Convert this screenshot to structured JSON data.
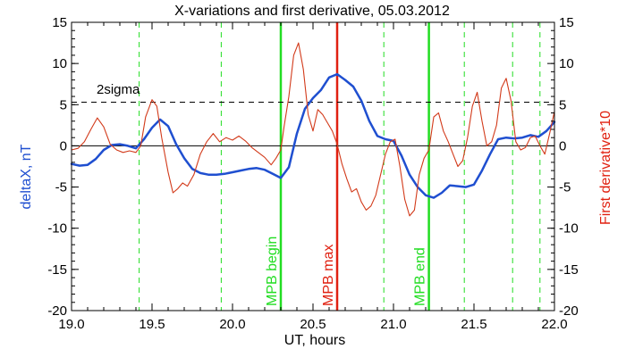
{
  "chart_data": {
    "type": "line",
    "title": "X-variations and first derivative, 05.03.2012",
    "xlabel": "UT, hours",
    "ylabel_left": "deltaX, nT",
    "ylabel_right": "First derivative*10",
    "xlim": [
      19.0,
      22.0
    ],
    "ylim": [
      -20,
      15
    ],
    "x_ticks": [
      "19.0",
      "19.5",
      "20.0",
      "20.5",
      "21.0",
      "21.5",
      "22.0"
    ],
    "y_ticks": [
      "15",
      "10",
      "5",
      "0",
      "-5",
      "-10",
      "-15",
      "-20"
    ],
    "zero_line": 0,
    "sigma_level": 5.3,
    "sigma_label": "2sigma",
    "colors": {
      "deltaX": "#1f4fd0",
      "derivative": "#d23a1a",
      "green": "#22dd22",
      "red": "#e02010",
      "axis": "#000000"
    },
    "series": [
      {
        "key": "deltaX",
        "x": [
          19.0,
          19.05,
          19.1,
          19.15,
          19.2,
          19.25,
          19.3,
          19.35,
          19.4,
          19.45,
          19.5,
          19.55,
          19.6,
          19.65,
          19.7,
          19.75,
          19.8,
          19.85,
          19.9,
          19.95,
          20.0,
          20.05,
          20.1,
          20.15,
          20.2,
          20.25,
          20.3,
          20.35,
          20.4,
          20.45,
          20.5,
          20.55,
          20.6,
          20.65,
          20.7,
          20.75,
          20.8,
          20.85,
          20.9,
          20.95,
          21.0,
          21.05,
          21.1,
          21.15,
          21.2,
          21.25,
          21.3,
          21.35,
          21.4,
          21.45,
          21.5,
          21.55,
          21.6,
          21.65,
          21.7,
          21.75,
          21.8,
          21.85,
          21.9,
          21.95,
          22.0
        ],
        "values": [
          -2.2,
          -2.4,
          -2.3,
          -1.6,
          -0.5,
          0.1,
          0.2,
          0.0,
          -0.3,
          0.8,
          2.2,
          3.2,
          2.4,
          0.2,
          -1.5,
          -2.8,
          -3.3,
          -3.5,
          -3.5,
          -3.4,
          -3.2,
          -3.0,
          -2.8,
          -2.7,
          -2.9,
          -3.4,
          -3.9,
          -2.6,
          1.5,
          4.5,
          5.8,
          6.8,
          8.3,
          8.7,
          8.0,
          7.2,
          5.5,
          3.0,
          1.2,
          0.8,
          0.6,
          -1.2,
          -3.5,
          -5.0,
          -6.0,
          -6.3,
          -5.7,
          -4.8,
          -4.9,
          -5.0,
          -4.7,
          -3.0,
          -1.0,
          0.8,
          1.0,
          0.9,
          1.0,
          1.3,
          1.1,
          1.8,
          2.9
        ]
      },
      {
        "key": "derivative",
        "x": [
          19.0,
          19.04,
          19.08,
          19.12,
          19.16,
          19.2,
          19.24,
          19.28,
          19.32,
          19.36,
          19.4,
          19.43,
          19.46,
          19.5,
          19.53,
          19.56,
          19.6,
          19.63,
          19.66,
          19.69,
          19.72,
          19.76,
          19.8,
          19.84,
          19.88,
          19.92,
          19.96,
          20.0,
          20.04,
          20.08,
          20.12,
          20.16,
          20.2,
          20.24,
          20.27,
          20.3,
          20.32,
          20.35,
          20.38,
          20.41,
          20.44,
          20.47,
          20.5,
          20.53,
          20.56,
          20.59,
          20.62,
          20.65,
          20.68,
          20.71,
          20.74,
          20.77,
          20.8,
          20.83,
          20.86,
          20.89,
          20.92,
          20.95,
          20.98,
          21.01,
          21.04,
          21.07,
          21.1,
          21.13,
          21.16,
          21.19,
          21.22,
          21.25,
          21.28,
          21.31,
          21.34,
          21.37,
          21.4,
          21.43,
          21.46,
          21.49,
          21.52,
          21.55,
          21.58,
          21.61,
          21.64,
          21.67,
          21.7,
          21.73,
          21.76,
          21.79,
          21.82,
          21.85,
          21.88,
          21.91,
          21.94,
          21.97,
          22.0
        ],
        "values": [
          -0.5,
          -0.3,
          0.5,
          2.0,
          3.4,
          2.3,
          0.2,
          -0.5,
          -0.8,
          -0.6,
          -0.8,
          0.0,
          3.5,
          5.6,
          4.8,
          1.0,
          -3.2,
          -5.7,
          -5.2,
          -4.5,
          -4.9,
          -3.5,
          -1.0,
          0.5,
          1.5,
          0.5,
          1.0,
          0.7,
          1.2,
          0.6,
          -0.2,
          -0.8,
          -1.4,
          -2.3,
          -1.5,
          -0.5,
          2.3,
          6.0,
          11.0,
          12.5,
          9.3,
          3.8,
          1.8,
          4.4,
          3.8,
          2.8,
          1.8,
          0.2,
          -2.2,
          -4.0,
          -5.6,
          -5.2,
          -6.8,
          -7.8,
          -7.3,
          -6.0,
          -3.5,
          -1.0,
          0.5,
          0.8,
          -2.5,
          -6.5,
          -8.5,
          -7.8,
          -3.5,
          -1.5,
          -0.5,
          3.5,
          4.0,
          1.8,
          0.5,
          -1.0,
          -2.5,
          -1.8,
          1.0,
          4.8,
          6.5,
          3.0,
          0.0,
          0.5,
          2.5,
          7.0,
          8.2,
          5.5,
          0.5,
          -0.5,
          -0.2,
          1.0,
          1.2,
          0.0,
          -1.0,
          1.5,
          4.2
        ]
      }
    ],
    "vertical_markers": [
      {
        "x": 19.42,
        "style": "dashed-green"
      },
      {
        "x": 19.93,
        "style": "dashed-green"
      },
      {
        "x": 20.3,
        "style": "solid-green",
        "label": "MPB begin"
      },
      {
        "x": 20.65,
        "style": "solid-red",
        "label": "MPB max"
      },
      {
        "x": 20.94,
        "style": "dashed-green"
      },
      {
        "x": 21.22,
        "style": "solid-green",
        "label": "MPB end"
      },
      {
        "x": 21.44,
        "style": "dashed-green"
      },
      {
        "x": 21.74,
        "style": "dashed-green"
      },
      {
        "x": 21.91,
        "style": "dashed-green"
      }
    ]
  }
}
